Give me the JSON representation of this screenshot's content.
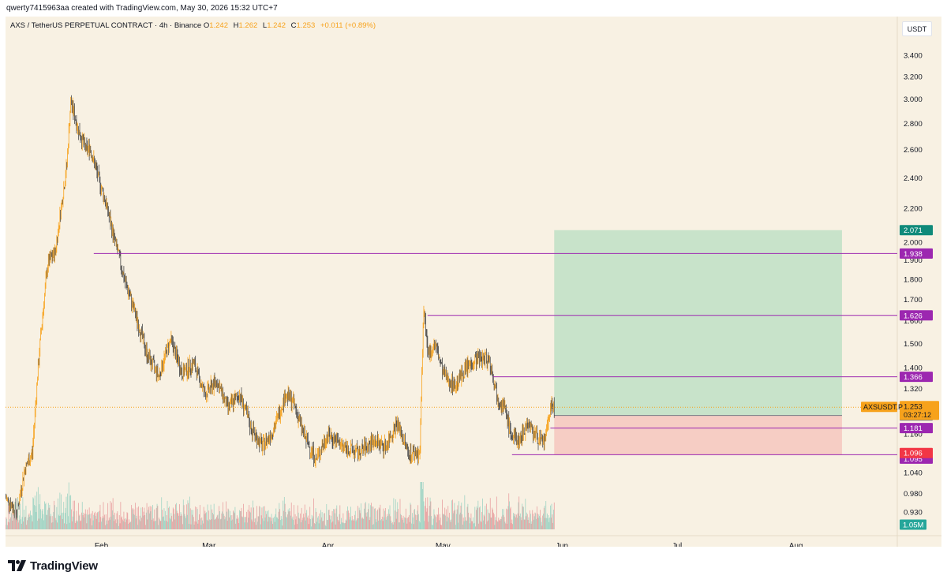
{
  "header": {
    "credit": "qwerty7415963aa created with TradingView.com, May 30, 2026 15:32 UTC+7"
  },
  "legend": {
    "symbol": "AXS / TetherUS PERPETUAL CONTRACT · 4h · Binance",
    "o_label": "O",
    "o_value": "1.242",
    "h_label": "H",
    "h_value": "1.262",
    "l_label": "L",
    "l_value": "1.242",
    "c_label": "C",
    "c_value": "1.253",
    "change": "+0.011 (+0.89%)"
  },
  "currency_button": "USDT",
  "footer": {
    "brand": "TradingView"
  },
  "colors": {
    "background": "#f8f1e3",
    "candle_up": "#f7a21b",
    "candle_down": "#4a4a4a",
    "level_line": "#9c27b0",
    "profit_zone": "#bfe0c6",
    "loss_zone": "#f5c9c0",
    "take_profit_tag": "#0f8a7a",
    "stop_tag": "#f23645",
    "price_tag": "#f7a21b"
  },
  "chart_data": {
    "type": "candlestick",
    "symbol": "AXSUSDT.P",
    "interval": "4h",
    "x_labels": [
      "Feb",
      "Mar",
      "Apr",
      "May",
      "Jun",
      "Jul",
      "Aug"
    ],
    "y_ticks": [
      "3.400",
      "3.200",
      "3.000",
      "2.800",
      "2.600",
      "2.400",
      "2.200",
      "2.000",
      "1.900",
      "1.800",
      "1.700",
      "1.600",
      "1.500",
      "1.400",
      "1.320",
      "1.240",
      "1.160",
      "1.096",
      "1.040",
      "0.980",
      "0.930"
    ],
    "y_tick_values": [
      3.4,
      3.2,
      3.0,
      2.8,
      2.6,
      2.4,
      2.2,
      2.0,
      1.9,
      1.8,
      1.7,
      1.6,
      1.5,
      1.4,
      1.32,
      1.24,
      1.16,
      1.096,
      1.04,
      0.98,
      0.93
    ],
    "scale": "log",
    "ylim": [
      0.89,
      3.55
    ],
    "date_range": [
      "2026-01-07",
      "2026-08-27"
    ],
    "price_path": [
      [
        "2026-01-07",
        0.97
      ],
      [
        "2026-01-10",
        0.93
      ],
      [
        "2026-01-12",
        1.05
      ],
      [
        "2026-01-14",
        1.1
      ],
      [
        "2026-01-16",
        1.5
      ],
      [
        "2026-01-18",
        1.88
      ],
      [
        "2026-01-20",
        1.95
      ],
      [
        "2026-01-22",
        2.3
      ],
      [
        "2026-01-23",
        2.5
      ],
      [
        "2026-01-24",
        2.98
      ],
      [
        "2026-01-26",
        2.75
      ],
      [
        "2026-01-28",
        2.6
      ],
      [
        "2026-01-29",
        2.62
      ],
      [
        "2026-01-31",
        2.42
      ],
      [
        "2026-02-02",
        2.25
      ],
      [
        "2026-02-04",
        2.05
      ],
      [
        "2026-02-07",
        1.8
      ],
      [
        "2026-02-10",
        1.62
      ],
      [
        "2026-02-13",
        1.45
      ],
      [
        "2026-02-16",
        1.37
      ],
      [
        "2026-02-19",
        1.52
      ],
      [
        "2026-02-22",
        1.38
      ],
      [
        "2026-02-25",
        1.42
      ],
      [
        "2026-02-28",
        1.3
      ],
      [
        "2026-03-03",
        1.35
      ],
      [
        "2026-03-06",
        1.25
      ],
      [
        "2026-03-09",
        1.3
      ],
      [
        "2026-03-12",
        1.18
      ],
      [
        "2026-03-15",
        1.12
      ],
      [
        "2026-03-18",
        1.18
      ],
      [
        "2026-03-21",
        1.3
      ],
      [
        "2026-03-23",
        1.27
      ],
      [
        "2026-03-26",
        1.15
      ],
      [
        "2026-03-29",
        1.08
      ],
      [
        "2026-04-01",
        1.16
      ],
      [
        "2026-04-05",
        1.12
      ],
      [
        "2026-04-09",
        1.1
      ],
      [
        "2026-04-13",
        1.14
      ],
      [
        "2026-04-16",
        1.12
      ],
      [
        "2026-04-19",
        1.2
      ],
      [
        "2026-04-22",
        1.1
      ],
      [
        "2026-04-25",
        1.1
      ],
      [
        "2026-04-26",
        1.66
      ],
      [
        "2026-04-27",
        1.45
      ],
      [
        "2026-04-29",
        1.5
      ],
      [
        "2026-05-01",
        1.38
      ],
      [
        "2026-05-04",
        1.33
      ],
      [
        "2026-05-07",
        1.4
      ],
      [
        "2026-05-10",
        1.44
      ],
      [
        "2026-05-13",
        1.44
      ],
      [
        "2026-05-15",
        1.3
      ],
      [
        "2026-05-17",
        1.25
      ],
      [
        "2026-05-19",
        1.15
      ],
      [
        "2026-05-21",
        1.14
      ],
      [
        "2026-05-23",
        1.2
      ],
      [
        "2026-05-25",
        1.16
      ],
      [
        "2026-05-27",
        1.13
      ],
      [
        "2026-05-28",
        1.16
      ],
      [
        "2026-05-29",
        1.26
      ],
      [
        "2026-05-30",
        1.253
      ]
    ],
    "horizontal_levels": [
      {
        "price": 1.938,
        "label": "1.938",
        "from": "2026-01-30"
      },
      {
        "price": 1.626,
        "label": "1.626",
        "from": "2026-04-27"
      },
      {
        "price": 1.366,
        "label": "1.366",
        "from": "2026-05-14"
      },
      {
        "price": 1.181,
        "label": "1.181",
        "from": "2026-05-29"
      },
      {
        "price": 1.095,
        "label": "1.095",
        "from": "2026-05-19"
      }
    ],
    "position": {
      "type": "long",
      "entry": 1.224,
      "take_profit": 2.071,
      "stop": 1.096,
      "from": "2026-05-30",
      "to": "2026-08-13"
    },
    "current_price": {
      "symbol": "AXSUSDT.P",
      "price": "1.253",
      "countdown": "03:27:12"
    },
    "price_tags": {
      "take_profit": "2.071",
      "entry": "1.224",
      "stop": "1.096"
    },
    "volume_last": "1.05M"
  }
}
